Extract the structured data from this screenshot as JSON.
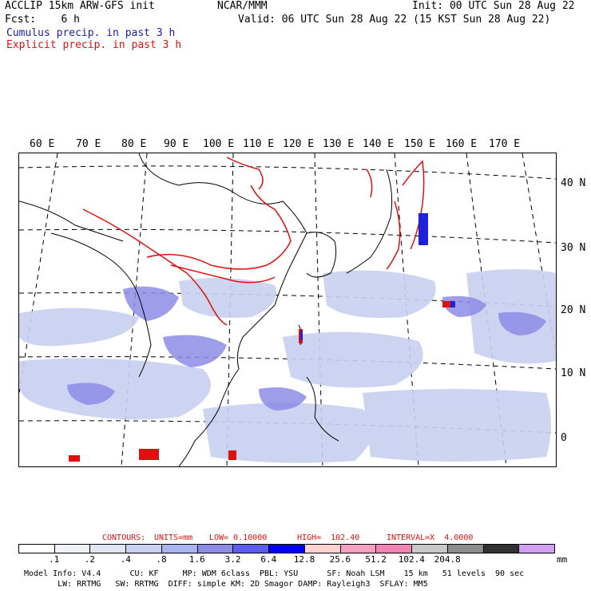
{
  "header": {
    "line1_left": "ACCLIP 15km ARW-GFS init",
    "line1_mid": "NCAR/MMM",
    "line1_right": "Init: 00 UTC Sun 28 Aug 22",
    "line2_left": "Fcst:    6 h",
    "line2_right": "Valid: 06 UTC Sun 28 Aug 22 (15 KST Sun 28 Aug 22)",
    "legend_cumulus": "Cumulus precip. in past 3 h",
    "legend_explicit": "Explicit precip. in past 3 h"
  },
  "colors": {
    "cumulus": "#3030c8",
    "explicit": "#e01010"
  },
  "map": {
    "lon_labels": [
      "60 E",
      "70 E",
      "80 E",
      "90 E",
      "100 E",
      "110 E",
      "120 E",
      "130 E",
      "140 E",
      "150 E",
      "160 E",
      "170 E"
    ],
    "lat_labels": [
      "40 N",
      "30 N",
      "20 N",
      "10 N",
      "0"
    ]
  },
  "contours": {
    "label": "CONTOURS:",
    "units": "UNITS=mm",
    "low": "LOW= 0.10000",
    "high": "HIGH=  102.40",
    "interval": "INTERVAL=X  4.0000"
  },
  "colorbar": {
    "colors": [
      "#ffffff",
      "#f0f2fa",
      "#e1e6f6",
      "#cad2f2",
      "#aab4ee",
      "#8c8ce6",
      "#5c5cee",
      "#0000ee",
      "#ffd2d2",
      "#fba0c0",
      "#f582b4",
      "#c8c8c8",
      "#8c8c8c",
      "#323232",
      "#d2a0f0"
    ],
    "ticks": [
      ".1",
      ".2",
      ".4",
      ".8",
      "1.6",
      "3.2",
      "6.4",
      "12.8",
      "25.6",
      "51.2",
      "102.4",
      "204.8"
    ],
    "unit": "mm"
  },
  "footer": {
    "line1": "Model Info: V4.4      CU: KF     MP: WDM 6class  PBL: YSU      SF: Noah LSM    15 km   51 levels  90 sec",
    "line2": "       LW: RRTMG   SW: RRTMG  DIFF: simple KM: 2D Smagor DAMP: Rayleigh3  SFLAY: MM5"
  }
}
